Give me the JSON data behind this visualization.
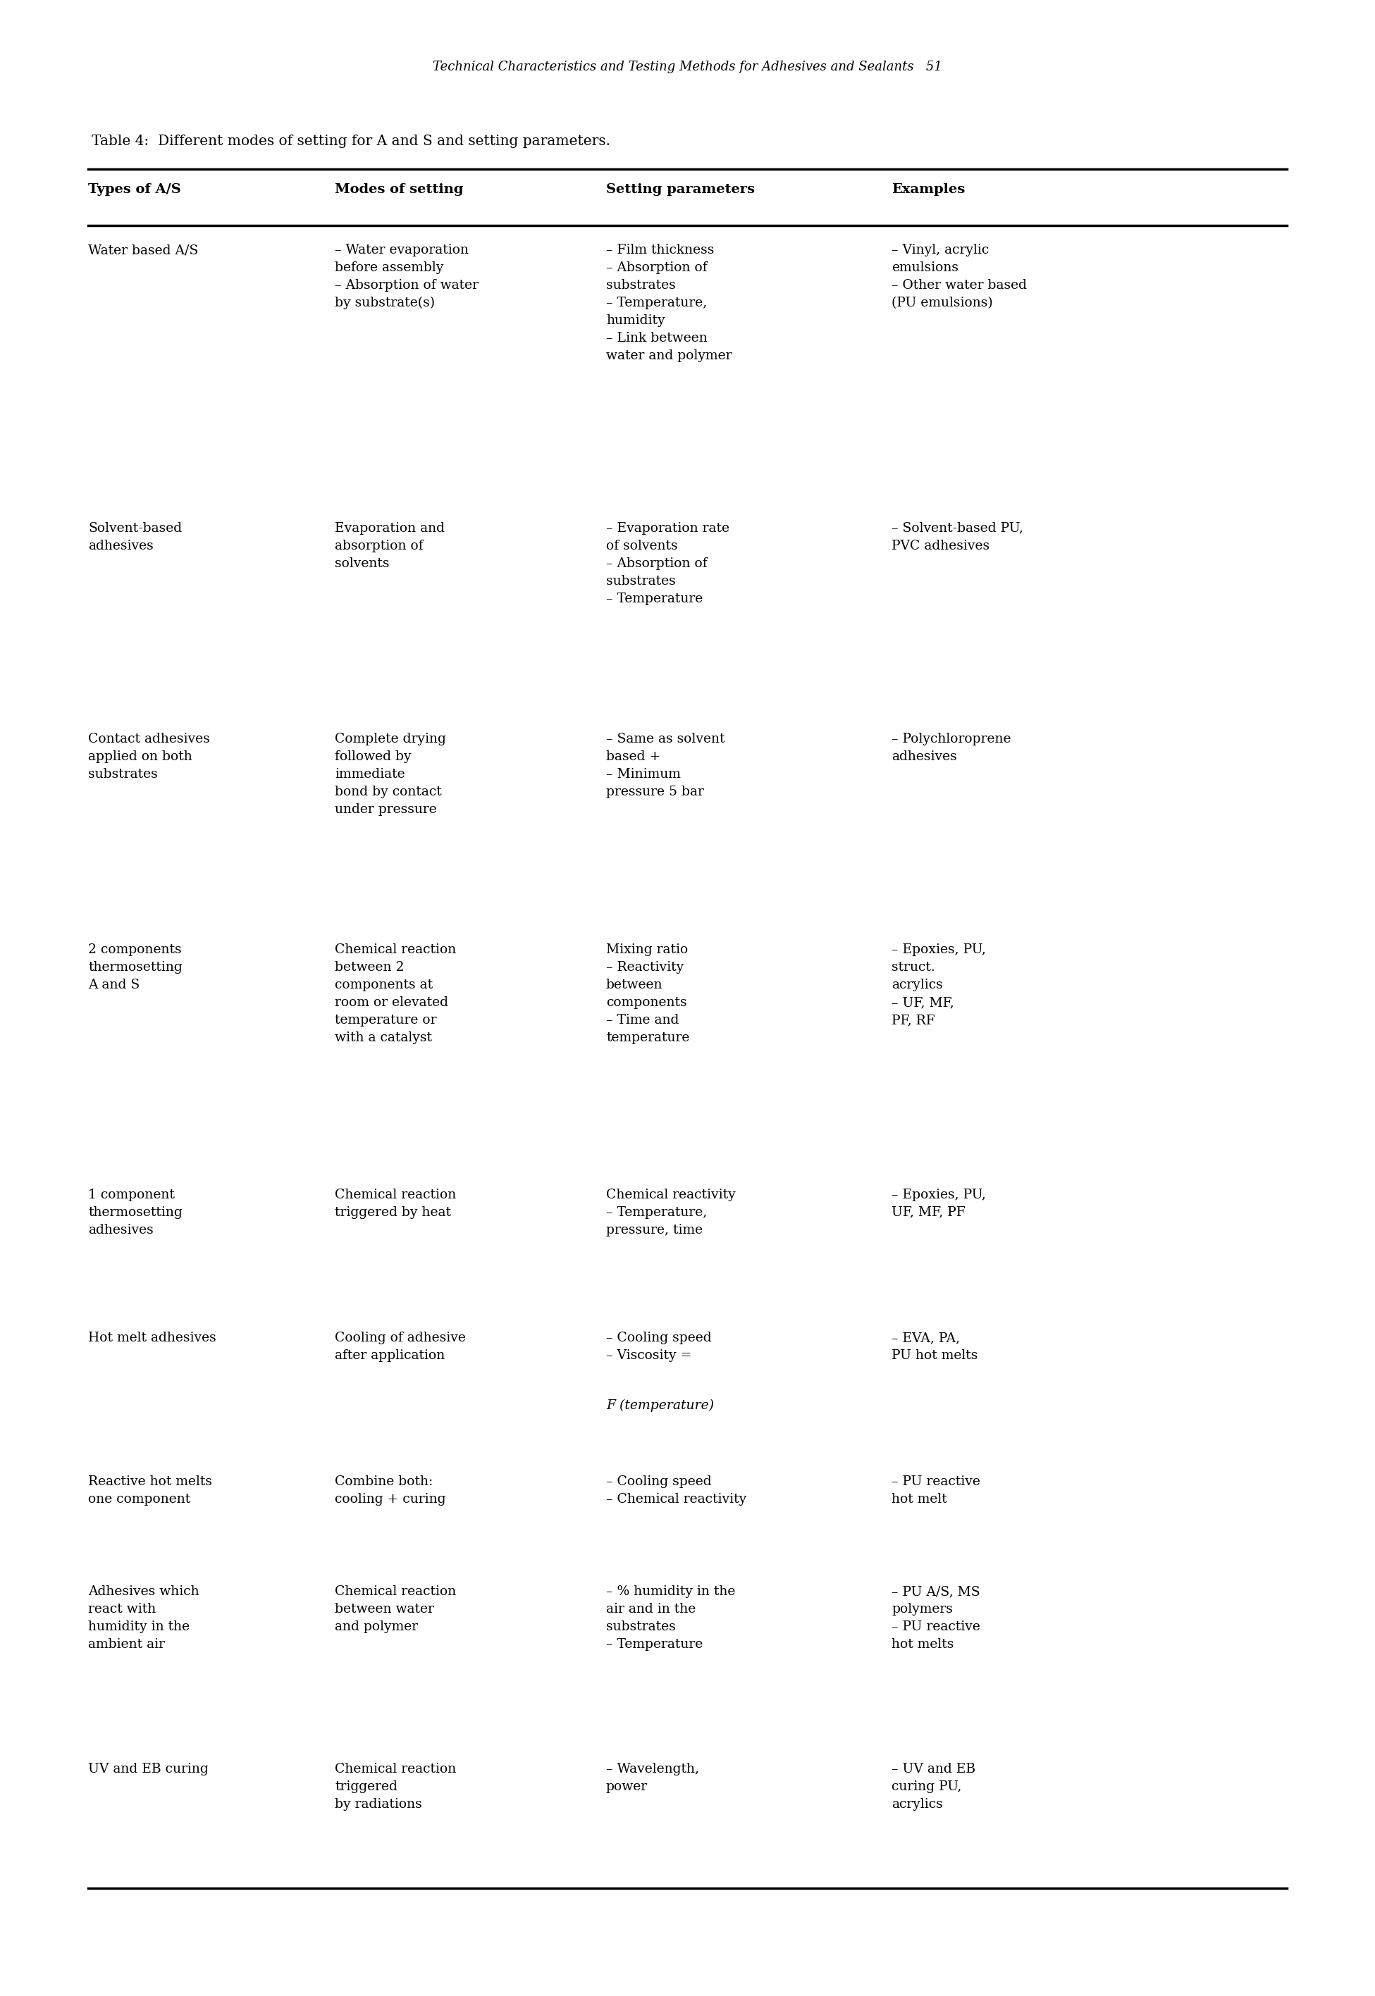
{
  "page_header": "Technical Characteristics and Testing Methods for Adhesives and Sealants   51",
  "table_title": "Table 4:  Different modes of setting for A and S and setting parameters.",
  "columns": [
    "Types of A/S",
    "Modes of setting",
    "Setting parameters",
    "Examples"
  ],
  "rows": [
    {
      "col0": "Water based A/S",
      "col1": "– Water evaporation\nbefore assembly\n– Absorption of water\nby substrate(s)",
      "col2": "– Film thickness\n– Absorption of\nsubstrates\n– Temperature,\nhumidity\n– Link between\nwater and polymer",
      "col3": "– Vinyl, acrylic\nemulsions\n– Other water based\n(PU emulsions)"
    },
    {
      "col0": "Solvent-based\nadhesives",
      "col1": "Evaporation and\nabsorption of\nsolvents",
      "col2": "– Evaporation rate\nof solvents\n– Absorption of\nsubstrates\n– Temperature",
      "col3": "– Solvent-based PU,\nPVC adhesives"
    },
    {
      "col0": "Contact adhesives\napplied on both\nsubstrates",
      "col1": "Complete drying\nfollowed by\nimmediate\nbond by contact\nunder pressure",
      "col2": "– Same as solvent\nbased +\n– Minimum\npressure 5 bar",
      "col3": "– Polychloroprene\nadhesives"
    },
    {
      "col0": "2 components\nthermosetting\nA and S",
      "col1": "Chemical reaction\nbetween 2\ncomponents at\nroom or elevated\ntemperature or\nwith a catalyst",
      "col2": "Mixing ratio\n– Reactivity\nbetween\ncomponents\n– Time and\ntemperature",
      "col3": "– Epoxies, PU,\nstruct.\nacrylics\n– UF, MF,\nPF, RF"
    },
    {
      "col0": "1 component\nthermosetting\nadhesives",
      "col1": "Chemical reaction\ntriggered by heat",
      "col2": "Chemical reactivity\n– Temperature,\npressure, time",
      "col3": "– Epoxies, PU,\nUF, MF, PF"
    },
    {
      "col0": "Hot melt adhesives",
      "col1": "Cooling of adhesive\nafter application",
      "col2": "– Cooling speed\n– Viscosity =\nF (temperature)",
      "col3": "– EVA, PA,\nPU hot melts"
    },
    {
      "col0": "Reactive hot melts\none component",
      "col1": "Combine both:\ncooling + curing",
      "col2": "– Cooling speed\n– Chemical reactivity",
      "col3": "– PU reactive\nhot melt"
    },
    {
      "col0": "Adhesives which\nreact with\nhumidity in the\nambient air",
      "col1": "Chemical reaction\nbetween water\nand polymer",
      "col2": "– % humidity in the\nair and in the\nsubstrates\n– Temperature",
      "col3": "– PU A/S, MS\npolymers\n– PU reactive\nhot melts"
    },
    {
      "col0": "UV and EB curing",
      "col1": "Chemical reaction\ntriggered\nby radiations",
      "col2": "– Wavelength,\npower",
      "col3": "– UV and EB\ncuring PU,\nacrylics"
    }
  ],
  "background_color": "#ffffff",
  "text_color": "#000000",
  "font_size": 13.5,
  "header_font_size": 14.0,
  "title_font_size": 14.5,
  "page_header_font_size": 13.0
}
